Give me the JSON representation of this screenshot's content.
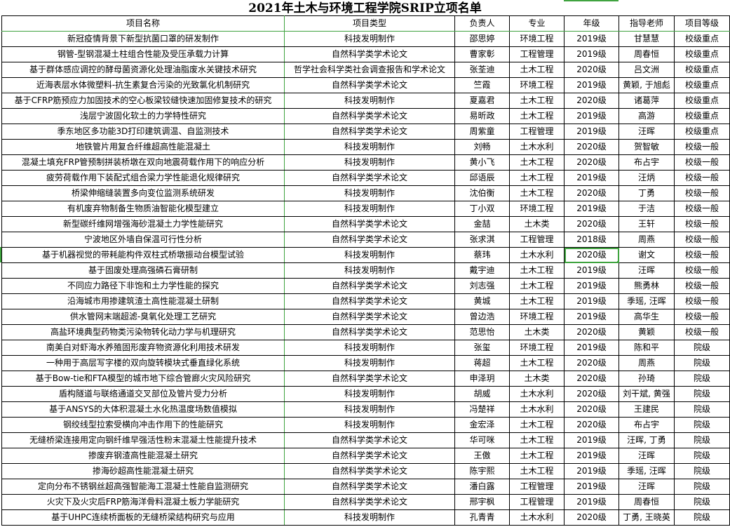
{
  "title": "2021年土木与环境工程学院SRIP立项名单",
  "columns": [
    "项目名称",
    "项目类型",
    "负责人",
    "专业",
    "年级",
    "指导老师",
    "项目等级"
  ],
  "selected_cell": {
    "row": 15,
    "column": "年级"
  },
  "accent_color": "#3fa33f",
  "rows": [
    [
      "新冠疫情背景下新型抗菌口罩的研发制作",
      "科技发明制作",
      "邵思婷",
      "环境工程",
      "2019级",
      "甘慧慧",
      "校级重点"
    ],
    [
      "钢管-型钢混凝土柱组合性能及受压承载力计算",
      "自然科学类学术论文",
      "曹家彰",
      "工程管理",
      "2019级",
      "周春恒",
      "校级重点"
    ],
    [
      "基于群体感应调控的酵母菌资源化处理油脂废水关键技术研究",
      "哲学社会科学类社会调查报告和学术论文",
      "张荃迪",
      "土木工程",
      "2020级",
      "吕文洲",
      "校级重点"
    ],
    [
      "近海表层水体微塑料-抗生素复合污染的光致氯化机制研究",
      "自然科学类学术论文",
      "竺霞",
      "环境工程",
      "2019级",
      "黄颖, 于旭彪",
      "校级重点"
    ],
    [
      "基于CFRP筋预应力加固技术的空心板梁铰缝快速加固修复技术的研究",
      "科技发明制作",
      "夏嘉君",
      "土木工程",
      "2020级",
      "诸葛萍",
      "校级重点"
    ],
    [
      "浅层宁波固化软土的力学特性研究",
      "自然科学类学术论文",
      "易昕政",
      "土木工程",
      "2019级",
      "高游",
      "校级重点"
    ],
    [
      "季东地区多功能3D打印建筑调温、自监测技术",
      "自然科学类学术论文",
      "周紫童",
      "工程管理",
      "2019级",
      "汪晖",
      "校级重点"
    ],
    [
      "地铁管片用复合纤维超高性能混凝土",
      "科技发明制作",
      "刘畅",
      "土木水利",
      "2020级",
      "贺智敏",
      "校级一般"
    ],
    [
      "混凝土填充FRP管预制拼装桥墩在双向地震荷载作用下的响应分析",
      "科技发明制作",
      "黄小飞",
      "土木工程",
      "2020级",
      "布占宇",
      "校级一般"
    ],
    [
      "疲劳荷载作用下装配式组合梁力学性能退化规律研究",
      "自然科学类学术论文",
      "邱语辰",
      "土木工程",
      "2019级",
      "汪炳",
      "校级一般"
    ],
    [
      "桥梁伸缩缝装置多向变位监测系统研发",
      "科技发明制作",
      "沈伯衡",
      "土木工程",
      "2020级",
      "丁勇",
      "校级一般"
    ],
    [
      "有机废弃物制备生物质油智能化模型建立",
      "科技发明制作",
      "丁小双",
      "环境工程",
      "2019级",
      "于洁",
      "校级一般"
    ],
    [
      "新型碳纤维网增强海砂混凝土力学性能研究",
      "自然科学类学术论文",
      "金喆",
      "土木类",
      "2020级",
      "王轩",
      "校级一般"
    ],
    [
      "宁波地区外墙自保温可行性分析",
      "自然科学类学术论文",
      "张求淇",
      "工程管理",
      "2018级",
      "周燕",
      "校级一般"
    ],
    [
      "基于机器视觉的带耗能构件双柱式桥墩振动台模型试验",
      "科技发明制作",
      "蔡玮",
      "土木水利",
      "2020级",
      "谢文",
      "校级一般"
    ],
    [
      "基于固废处理高强磷石膏研制",
      "科技发明制作",
      "戴宇迪",
      "土木工程",
      "2019级",
      "汪晖",
      "校级一般"
    ],
    [
      "不同应力路径下非饱和土力学性能的探究",
      "自然科学类学术论文",
      "刘志强",
      "土木工程",
      "2019级",
      "熊勇林",
      "校级一般"
    ],
    [
      "沿海城市用掺建筑渣土高性能混凝土研制",
      "自然科学类学术论文",
      "黄城",
      "土木工程",
      "2019级",
      "季瑶, 汪晖",
      "校级一般"
    ],
    [
      "供水管网末端超滤-臭氧化处理工艺研究",
      "自然科学类学术论文",
      "曾边浩",
      "环境工程",
      "2019级",
      "高华生",
      "校级一般"
    ],
    [
      "高盐环境典型药物类污染物转化动力学与机理研究",
      "自然科学类学术论文",
      "范思怡",
      "土木类",
      "2020级",
      "黄颖",
      "校级一般"
    ],
    [
      "南美白对虾海水养殖固形废弃物资源化利用技术研发",
      "科技发明制作",
      "张玺",
      "环境工程",
      "2019级",
      "陈和平",
      "院级"
    ],
    [
      "一种用于高层写字楼的双向旋转模块式垂直绿化系统",
      "科技发明制作",
      "蒋超",
      "土木工程",
      "2020级",
      "周燕",
      "院级"
    ],
    [
      "基于Bow-tie和FTA模型的城市地下综合管廊火灾风险研究",
      "自然科学类学术论文",
      "申泽玥",
      "土木类",
      "2020级",
      "孙琦",
      "院级"
    ],
    [
      "盾构隧道与联络通道交叉部位及管片受力分析",
      "科技发明制作",
      "胡威",
      "土木水利",
      "2020级",
      "刘干斌, 黄强",
      "院级"
    ],
    [
      "基于ANSYS的大体积混凝土水化热温度场数值模拟",
      "科技发明制作",
      "冯楚祥",
      "土木水利",
      "2020级",
      "王建民",
      "院级"
    ],
    [
      "钢绞线型拉索受横向冲击作用下的性能研究",
      "科技发明制作",
      "金宏泽",
      "土木工程",
      "2020级",
      "布占宇",
      "院级"
    ],
    [
      "无缝桥梁连接用定向钢纤维早强活性粉末混凝土性能提升技术",
      "自然科学类学术论文",
      "华可咪",
      "土木工程",
      "2019级",
      "汪晖, 丁勇",
      "院级"
    ],
    [
      "掺废弃钢渣高性能混凝土研究",
      "自然科学类学术论文",
      "王傲",
      "土木工程",
      "2019级",
      "汪晖",
      "院级"
    ],
    [
      "掺海砂超高性能混凝土研究",
      "自然科学类学术论文",
      "陈宇熙",
      "土木工程",
      "2019级",
      "季瑶, 汪晖",
      "院级"
    ],
    [
      "定向分布不锈钢丝超高强智能海工混凝土性能自监测研究",
      "自然科学类学术论文",
      "潘白露",
      "工程管理",
      "2019级",
      "汪晖",
      "院级"
    ],
    [
      "火灾下及火灾后FRP筋海洋骨料混凝土板力学能研究",
      "自然科学类学术论文",
      "邢宇枫",
      "工程管理",
      "2019级",
      "周春恒",
      "院级"
    ],
    [
      "基于UHPC连续桥面板的无缝桥梁结构研究与应用",
      "科技发明制作",
      "孔青青",
      "土木水利",
      "2020级",
      "丁勇, 王晓英",
      "院级"
    ]
  ]
}
